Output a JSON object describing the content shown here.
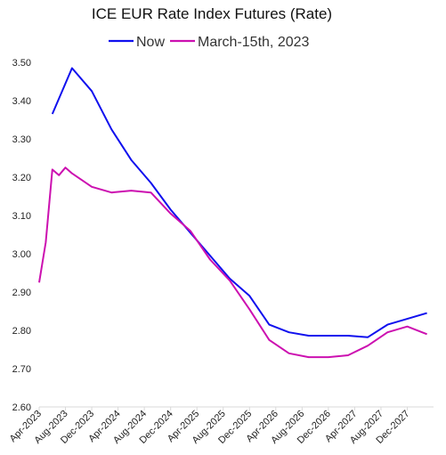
{
  "chart_data": {
    "type": "line",
    "title": "ICE EUR Rate Index Futures (Rate)",
    "xlabel": "",
    "ylabel": "",
    "ylim": [
      2.6,
      3.5
    ],
    "yticks": [
      "2.60",
      "2.70",
      "2.80",
      "2.90",
      "3.00",
      "3.10",
      "3.20",
      "3.30",
      "3.40",
      "3.50"
    ],
    "x_start": "Apr-2023",
    "x_step_months": 1,
    "x_tick_labels": [
      "Apr-2023",
      "Aug-2023",
      "Dec-2023",
      "Apr-2024",
      "Aug-2024",
      "Dec-2024",
      "Apr-2025",
      "Aug-2025",
      "Dec-2025",
      "Apr-2026",
      "Aug-2026",
      "Dec-2026",
      "Apr-2027",
      "Aug-2027",
      "Dec-2027"
    ],
    "grid": false,
    "legend_position": "top",
    "series": [
      {
        "name": "Now",
        "color": "#1010ee",
        "points": [
          [
            "Jun-2023",
            3.365
          ],
          [
            "Sep-2023",
            3.485
          ],
          [
            "Dec-2023",
            3.425
          ],
          [
            "Mar-2024",
            3.325
          ],
          [
            "Jun-2024",
            3.245
          ],
          [
            "Sep-2024",
            3.185
          ],
          [
            "Dec-2024",
            3.115
          ],
          [
            "Mar-2025",
            3.055
          ],
          [
            "Jun-2025",
            2.995
          ],
          [
            "Sep-2025",
            2.935
          ],
          [
            "Dec-2025",
            2.89
          ],
          [
            "Mar-2026",
            2.815
          ],
          [
            "Jun-2026",
            2.795
          ],
          [
            "Sep-2026",
            2.786
          ],
          [
            "Dec-2026",
            2.786
          ],
          [
            "Mar-2027",
            2.786
          ],
          [
            "Jun-2027",
            2.782
          ],
          [
            "Sep-2027",
            2.815
          ],
          [
            "Dec-2027",
            2.83
          ],
          [
            "Mar-2028",
            2.845
          ]
        ]
      },
      {
        "name": "March-15th, 2023",
        "color": "#cc10b0",
        "points": [
          [
            "Apr-2023",
            2.925
          ],
          [
            "May-2023",
            3.03
          ],
          [
            "Jun-2023",
            3.22
          ],
          [
            "Jul-2023",
            3.205
          ],
          [
            "Aug-2023",
            3.225
          ],
          [
            "Sep-2023",
            3.21
          ],
          [
            "Dec-2023",
            3.175
          ],
          [
            "Mar-2024",
            3.16
          ],
          [
            "Jun-2024",
            3.165
          ],
          [
            "Sep-2024",
            3.16
          ],
          [
            "Dec-2024",
            3.105
          ],
          [
            "Mar-2025",
            3.06
          ],
          [
            "Jun-2025",
            2.985
          ],
          [
            "Sep-2025",
            2.93
          ],
          [
            "Dec-2025",
            2.855
          ],
          [
            "Mar-2026",
            2.775
          ],
          [
            "Jun-2026",
            2.74
          ],
          [
            "Sep-2026",
            2.73
          ],
          [
            "Dec-2026",
            2.73
          ],
          [
            "Mar-2027",
            2.735
          ],
          [
            "Jun-2027",
            2.76
          ],
          [
            "Sep-2027",
            2.795
          ],
          [
            "Dec-2027",
            2.81
          ],
          [
            "Mar-2028",
            2.79
          ]
        ]
      }
    ]
  }
}
